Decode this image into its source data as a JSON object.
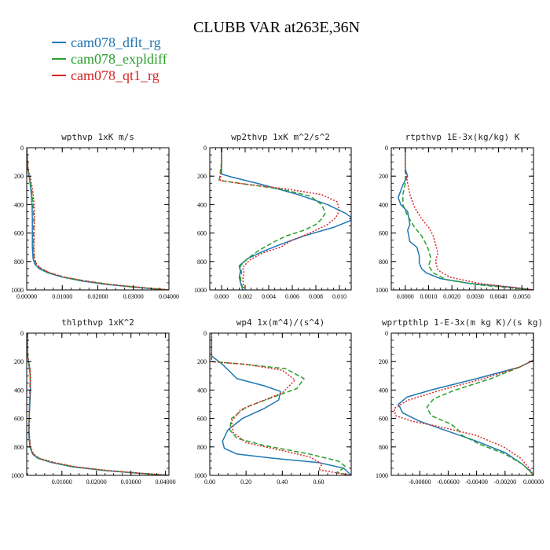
{
  "figure": {
    "title": "CLUBB VAR at263E,36N",
    "legend": [
      {
        "name": "cam078_dflt_rg",
        "color": "#1f77b4"
      },
      {
        "name": "cam078_expldiff",
        "color": "#2ca02c"
      },
      {
        "name": "cam078_qt1_rg",
        "color": "#d62728"
      }
    ]
  },
  "chart_data": [
    {
      "type": "line",
      "title": "wpthvp  1xK m/s",
      "xlim": [
        0,
        0.04
      ],
      "ylim": [
        0,
        1000
      ],
      "y_inverted": true,
      "xticks": [
        0,
        0.01,
        0.02,
        0.03,
        0.04
      ],
      "xtick_labels": [
        "0.00000",
        "0.01000",
        "0.02000",
        "0.03000",
        "0.04000"
      ],
      "yticks": [
        0,
        200,
        400,
        600,
        800,
        1000
      ],
      "ytick_labels": [
        "0",
        "200",
        "400",
        "600",
        "800",
        "1000"
      ],
      "series": [
        {
          "name": "cam078_dflt_rg",
          "color": "#1f77b4",
          "dash": "solid",
          "x": [
            0,
            0.0003,
            0.0008,
            0.0012,
            0.0015,
            0.0016,
            0.0016,
            0.0016,
            0.0018,
            0.0023,
            0.0035,
            0.006,
            0.01,
            0.015,
            0.022,
            0.03,
            0.037,
            0.04
          ],
          "y": [
            0,
            150,
            220,
            300,
            400,
            500,
            600,
            700,
            780,
            820,
            850,
            880,
            910,
            935,
            960,
            980,
            995,
            1000
          ]
        },
        {
          "name": "cam078_expldiff",
          "color": "#2ca02c",
          "dash": "6,3",
          "x": [
            0,
            0.0003,
            0.0009,
            0.0014,
            0.0018,
            0.002,
            0.0019,
            0.0019,
            0.0021,
            0.0027,
            0.004,
            0.0065,
            0.0105,
            0.016,
            0.023,
            0.031,
            0.038,
            0.04
          ],
          "y": [
            0,
            150,
            220,
            300,
            400,
            500,
            600,
            700,
            780,
            820,
            850,
            880,
            910,
            935,
            960,
            980,
            995,
            1000
          ]
        },
        {
          "name": "cam078_qt1_rg",
          "color": "#d62728",
          "dash": "2,2",
          "x": [
            0,
            0.0004,
            0.0011,
            0.0017,
            0.0021,
            0.0022,
            0.0021,
            0.002,
            0.0022,
            0.0028,
            0.0041,
            0.0066,
            0.0106,
            0.016,
            0.023,
            0.031,
            0.038,
            0.04
          ],
          "y": [
            0,
            150,
            220,
            300,
            400,
            500,
            600,
            700,
            780,
            820,
            850,
            880,
            910,
            935,
            960,
            980,
            995,
            1000
          ]
        }
      ]
    },
    {
      "type": "line",
      "title": "wp2thvp  1xK m^2/s^2",
      "xlim": [
        -0.001,
        0.011
      ],
      "ylim": [
        0,
        1000
      ],
      "y_inverted": true,
      "xticks": [
        0,
        0.002,
        0.004,
        0.006,
        0.008,
        0.01
      ],
      "xtick_labels": [
        "0.000",
        "0.002",
        "0.004",
        "0.006",
        "0.008",
        "0.010"
      ],
      "yticks": [
        0,
        200,
        400,
        600,
        800,
        1000
      ],
      "ytick_labels": [
        "0",
        "200",
        "400",
        "600",
        "800",
        "1000"
      ],
      "series": [
        {
          "name": "cam078_dflt_rg",
          "color": "#1f77b4",
          "dash": "solid",
          "x": [
            0,
            0,
            0,
            0.0008,
            0.0035,
            0.0065,
            0.009,
            0.0105,
            0.011,
            0.011,
            0.0095,
            0.007,
            0.005,
            0.0035,
            0.0022,
            0.0015,
            0.0016,
            0.0015,
            0.0016,
            0.0018
          ],
          "y": [
            0,
            100,
            185,
            205,
            260,
            330,
            400,
            460,
            490,
            510,
            560,
            620,
            680,
            730,
            780,
            830,
            870,
            910,
            950,
            1000
          ]
        },
        {
          "name": "cam078_expldiff",
          "color": "#2ca02c",
          "dash": "6,3",
          "x": [
            0,
            0,
            -0.0002,
            0.0015,
            0.005,
            0.0075,
            0.0085,
            0.0088,
            0.0085,
            0.008,
            0.007,
            0.0055,
            0.0045,
            0.0032,
            0.0022,
            0.0016,
            0.0017,
            0.0016,
            0.0018
          ],
          "y": [
            0,
            100,
            230,
            250,
            290,
            340,
            400,
            460,
            500,
            540,
            580,
            620,
            660,
            720,
            780,
            830,
            880,
            920,
            1000
          ]
        },
        {
          "name": "cam078_qt1_rg",
          "color": "#d62728",
          "dash": "2,2",
          "x": [
            0,
            0,
            -0.0001,
            0.0015,
            0.0055,
            0.0085,
            0.0098,
            0.01,
            0.0097,
            0.009,
            0.0075,
            0.006,
            0.005,
            0.0035,
            0.0024,
            0.0018,
            0.0019,
            0.0018,
            0.0019
          ],
          "y": [
            0,
            100,
            230,
            250,
            290,
            330,
            380,
            440,
            490,
            540,
            600,
            650,
            700,
            740,
            790,
            840,
            880,
            920,
            1000
          ]
        }
      ]
    },
    {
      "type": "line",
      "title": "rtpthvp  1E-3x(kg/kg) K",
      "xlim": [
        -0.0006,
        0.0055
      ],
      "ylim": [
        0,
        1000
      ],
      "y_inverted": true,
      "xticks": [
        0,
        0.001,
        0.002,
        0.003,
        0.004,
        0.005
      ],
      "xtick_labels": [
        "0.0000",
        "0.0010",
        "0.0020",
        "0.0030",
        "0.0040",
        "0.0050"
      ],
      "yticks": [
        0,
        200,
        400,
        600,
        800,
        1000
      ],
      "ytick_labels": [
        "0",
        "200",
        "400",
        "600",
        "800",
        "1000"
      ],
      "series": [
        {
          "name": "cam078_dflt_rg",
          "color": "#1f77b4",
          "dash": "solid",
          "x": [
            0,
            0,
            0.0001,
            -0.0001,
            -0.0003,
            -0.0002,
            0.0001,
            0.0002,
            0.0001,
            0.0002,
            0.0005,
            0.0006,
            0.0006,
            0.0007,
            0.0009,
            0.0015,
            0.0028,
            0.0045,
            0.0055
          ],
          "y": [
            0,
            150,
            200,
            260,
            350,
            400,
            450,
            540,
            580,
            660,
            700,
            760,
            810,
            850,
            880,
            920,
            955,
            980,
            1000
          ]
        },
        {
          "name": "cam078_expldiff",
          "color": "#2ca02c",
          "dash": "6,3",
          "x": [
            0,
            0,
            0,
            -0.0001,
            -0.0001,
            0.0001,
            0.0004,
            0.0007,
            0.0009,
            0.001,
            0.0011,
            0.001,
            0.0012,
            0.0018,
            0.0032,
            0.0048,
            0.0055
          ],
          "y": [
            0,
            150,
            250,
            330,
            400,
            480,
            560,
            620,
            680,
            720,
            780,
            830,
            880,
            930,
            965,
            990,
            1000
          ]
        },
        {
          "name": "cam078_qt1_rg",
          "color": "#d62728",
          "dash": "2,2",
          "x": [
            0,
            0,
            0.0001,
            0.0002,
            0.0004,
            0.0007,
            0.001,
            0.0012,
            0.0013,
            0.0014,
            0.0013,
            0.0014,
            0.0019,
            0.0032,
            0.0048,
            0.0055
          ],
          "y": [
            0,
            150,
            250,
            330,
            420,
            500,
            560,
            620,
            680,
            740,
            800,
            860,
            910,
            955,
            985,
            1000
          ]
        }
      ]
    },
    {
      "type": "line",
      "title": "thlpthvp  1xK^2",
      "xlim": [
        -0.0002,
        0.041
      ],
      "ylim": [
        0,
        1000
      ],
      "y_inverted": true,
      "xticks": [
        0.01,
        0.02,
        0.03,
        0.04
      ],
      "xtick_labels": [
        "0.01000",
        "0.02000",
        "0.03000",
        "0.04000"
      ],
      "yticks": [
        0,
        200,
        400,
        600,
        800,
        1000
      ],
      "ytick_labels": [
        "0",
        "200",
        "400",
        "600",
        "800",
        "1000"
      ],
      "series": [
        {
          "name": "cam078_dflt_rg",
          "color": "#1f77b4",
          "dash": "solid",
          "x": [
            0,
            0,
            0.0006,
            0.0008,
            0.0009,
            0.0007,
            0.0005,
            0.0004,
            0.0007,
            0.0015,
            0.003,
            0.007,
            0.013,
            0.022,
            0.032,
            0.041
          ],
          "y": [
            0,
            150,
            250,
            300,
            400,
            500,
            600,
            700,
            800,
            850,
            880,
            910,
            940,
            965,
            985,
            1000
          ]
        },
        {
          "name": "cam078_expldiff",
          "color": "#2ca02c",
          "dash": "6,3",
          "x": [
            0,
            0,
            0.0007,
            0.0008,
            0.0007,
            0.0006,
            0.0005,
            0.0005,
            0.0008,
            0.0017,
            0.0033,
            0.0075,
            0.0135,
            0.0225,
            0.0325,
            0.041
          ],
          "y": [
            0,
            150,
            250,
            300,
            400,
            500,
            600,
            700,
            800,
            850,
            880,
            910,
            940,
            965,
            985,
            1000
          ]
        },
        {
          "name": "cam078_qt1_rg",
          "color": "#d62728",
          "dash": "2,2",
          "x": [
            0,
            0,
            0.0008,
            0.0009,
            0.0008,
            0.0006,
            0.0005,
            0.0005,
            0.0009,
            0.0018,
            0.0035,
            0.0078,
            0.014,
            0.023,
            0.033,
            0.041
          ],
          "y": [
            0,
            150,
            250,
            300,
            400,
            500,
            600,
            700,
            800,
            850,
            880,
            910,
            940,
            965,
            985,
            1000
          ]
        }
      ]
    },
    {
      "type": "line",
      "title": "wp4  1x(m^4)/(s^4)",
      "xlim": [
        0,
        0.78
      ],
      "ylim": [
        0,
        1000
      ],
      "y_inverted": true,
      "xticks": [
        0,
        0.2,
        0.4,
        0.6
      ],
      "xtick_labels": [
        "0.00",
        "0.20",
        "0.40",
        "0.60"
      ],
      "yticks": [
        0,
        200,
        400,
        600,
        800,
        1000
      ],
      "ytick_labels": [
        "0",
        "200",
        "400",
        "600",
        "800",
        "1000"
      ],
      "series": [
        {
          "name": "cam078_dflt_rg",
          "color": "#1f77b4",
          "dash": "solid",
          "x": [
            0.01,
            0.01,
            0.07,
            0.15,
            0.3,
            0.39,
            0.38,
            0.3,
            0.18,
            0.1,
            0.07,
            0.08,
            0.15,
            0.35,
            0.6,
            0.74,
            0.78
          ],
          "y": [
            0,
            160,
            220,
            320,
            370,
            410,
            470,
            530,
            600,
            680,
            760,
            810,
            850,
            880,
            910,
            950,
            1000
          ]
        },
        {
          "name": "cam078_expldiff",
          "color": "#2ca02c",
          "dash": "6,3",
          "x": [
            0.01,
            0.01,
            0.2,
            0.42,
            0.52,
            0.48,
            0.35,
            0.2,
            0.12,
            0.11,
            0.15,
            0.3,
            0.55,
            0.71,
            0.75,
            0.7,
            0.78
          ],
          "y": [
            0,
            200,
            220,
            250,
            320,
            390,
            450,
            520,
            600,
            680,
            740,
            790,
            850,
            900,
            940,
            980,
            1000
          ]
        },
        {
          "name": "cam078_qt1_rg",
          "color": "#d62728",
          "dash": "2,2",
          "x": [
            0.01,
            0.01,
            0.2,
            0.4,
            0.47,
            0.4,
            0.3,
            0.17,
            0.12,
            0.13,
            0.2,
            0.38,
            0.55,
            0.62,
            0.6,
            0.78
          ],
          "y": [
            0,
            200,
            220,
            260,
            330,
            420,
            470,
            540,
            620,
            700,
            770,
            820,
            870,
            920,
            960,
            1000
          ]
        }
      ]
    },
    {
      "type": "line",
      "title": "wprtpthlp  1-E-3x(m kg K)/(s kg)",
      "xlim": [
        -0.01,
        0
      ],
      "ylim": [
        0,
        1000
      ],
      "y_inverted": true,
      "xticks": [
        -0.008,
        -0.006,
        -0.004,
        -0.002,
        0
      ],
      "xtick_labels": [
        "-0.00800",
        "-0.00600",
        "-0.00400",
        "-0.00200",
        "0.00000"
      ],
      "yticks": [
        0,
        200,
        400,
        600,
        800,
        1000
      ],
      "ytick_labels": [
        "0",
        "200",
        "400",
        "600",
        "800",
        "1000"
      ],
      "series": [
        {
          "name": "cam078_dflt_rg",
          "color": "#1f77b4",
          "dash": "solid",
          "x": [
            0,
            0,
            -0.001,
            -0.004,
            -0.0072,
            -0.0089,
            -0.0095,
            -0.0092,
            -0.008,
            -0.006,
            -0.004,
            -0.002,
            -0.0008,
            -0.0003,
            0
          ],
          "y": [
            0,
            190,
            240,
            320,
            400,
            450,
            500,
            560,
            620,
            690,
            760,
            840,
            920,
            965,
            1000
          ]
        },
        {
          "name": "cam078_expldiff",
          "color": "#2ca02c",
          "dash": "6,3",
          "x": [
            0,
            0,
            -0.001,
            -0.003,
            -0.0055,
            -0.007,
            -0.0075,
            -0.0072,
            -0.0058,
            -0.0053,
            -0.005,
            -0.0038,
            -0.002,
            -0.0008,
            -0.0003,
            0
          ],
          "y": [
            0,
            190,
            240,
            320,
            400,
            460,
            520,
            580,
            640,
            680,
            720,
            780,
            850,
            920,
            965,
            1000
          ]
        },
        {
          "name": "cam078_qt1_rg",
          "color": "#d62728",
          "dash": "2,2",
          "x": [
            0,
            0,
            -0.001,
            -0.0035,
            -0.0065,
            -0.0088,
            -0.0098,
            -0.0097,
            -0.0085,
            -0.0065,
            -0.004,
            -0.0021,
            -0.0009,
            -0.0003,
            0
          ],
          "y": [
            0,
            190,
            240,
            320,
            400,
            470,
            530,
            580,
            620,
            660,
            720,
            800,
            880,
            950,
            1000
          ]
        }
      ]
    }
  ]
}
